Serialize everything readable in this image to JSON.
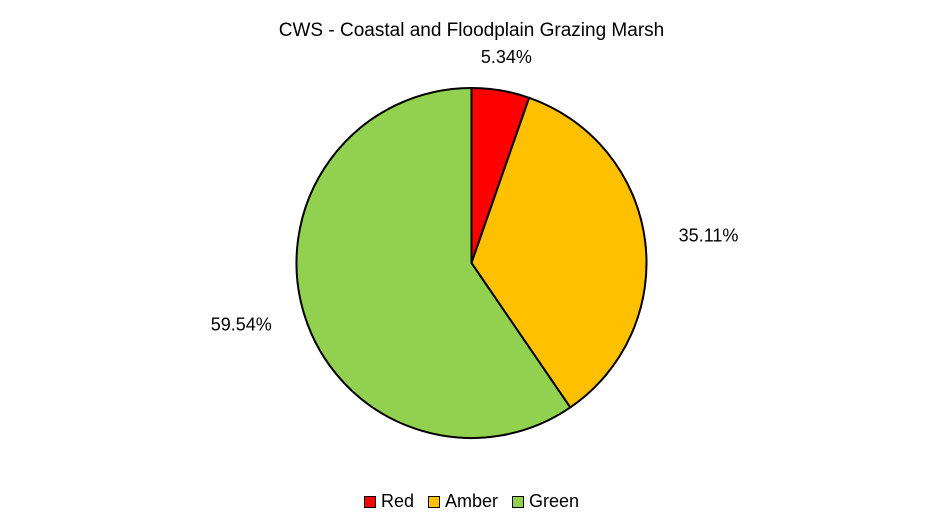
{
  "chart_data": {
    "type": "pie",
    "title": "CWS - Coastal and Floodplain Grazing Marsh",
    "categories": [
      "Red",
      "Amber",
      "Green"
    ],
    "values": [
      5.34,
      35.11,
      59.54
    ],
    "labels": [
      "5.34%",
      "35.11%",
      "59.54%"
    ],
    "colors": [
      "#FF0000",
      "#FFC000",
      "#92D050"
    ],
    "start_angle": "12 o'clock",
    "direction": "clockwise",
    "legend": "bottom"
  }
}
